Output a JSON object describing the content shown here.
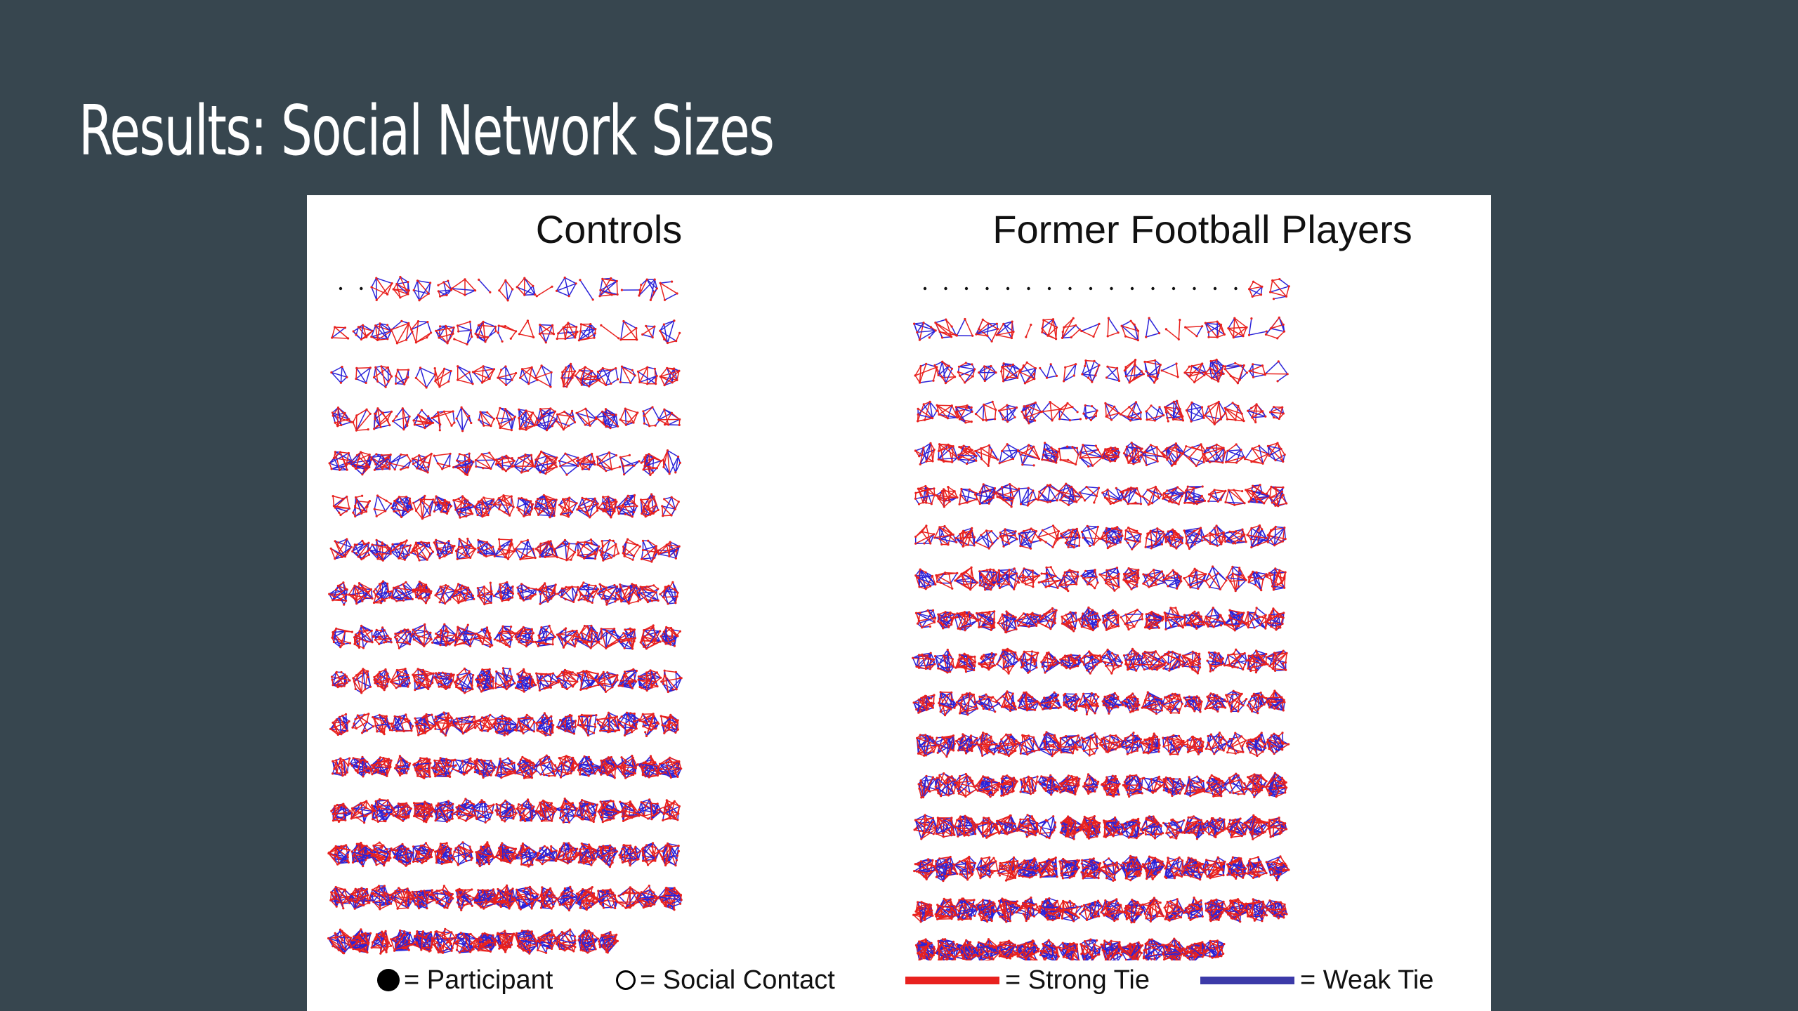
{
  "slide": {
    "title": "Results: Social Network Sizes"
  },
  "figure": {
    "panels": [
      {
        "id": "controls",
        "title": "Controls"
      },
      {
        "id": "players",
        "title": "Former Football Players"
      }
    ],
    "legend": {
      "participant": "= Participant",
      "contact": "= Social Contact",
      "strong": "= Strong Tie",
      "weak": "= Weak Tie"
    },
    "colors": {
      "strong_tie": "#e8211e",
      "weak_tie": "#2b23d9",
      "legend_weak": "#3c3aa8",
      "node_fill": "#e8211e",
      "node_outline": "#111111"
    }
  }
}
